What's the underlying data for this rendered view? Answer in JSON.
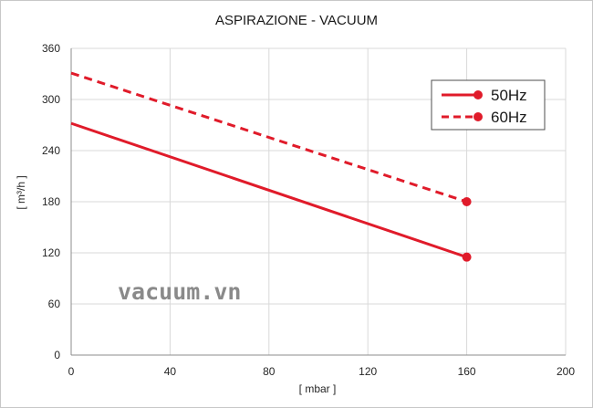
{
  "chart_data": {
    "type": "line",
    "title": "ASPIRAZIONE - VACUUM",
    "xlabel": "[ mbar ]",
    "ylabel": "[ m³/h ]",
    "xlim": [
      0,
      200
    ],
    "ylim": [
      0,
      360
    ],
    "xticks": [
      0,
      40,
      80,
      120,
      160,
      200
    ],
    "yticks": [
      0,
      60,
      120,
      180,
      240,
      300,
      360
    ],
    "grid": true,
    "legend_position": "top-right",
    "series": [
      {
        "name": "50Hz",
        "style": "solid",
        "color": "#e01b2a",
        "x": [
          0,
          160
        ],
        "y": [
          272,
          115
        ],
        "end_marker": true
      },
      {
        "name": "60Hz",
        "style": "dashed",
        "color": "#e01b2a",
        "x": [
          0,
          160
        ],
        "y": [
          331,
          180
        ],
        "end_marker": true
      }
    ]
  },
  "watermark": "vacuum.vn"
}
